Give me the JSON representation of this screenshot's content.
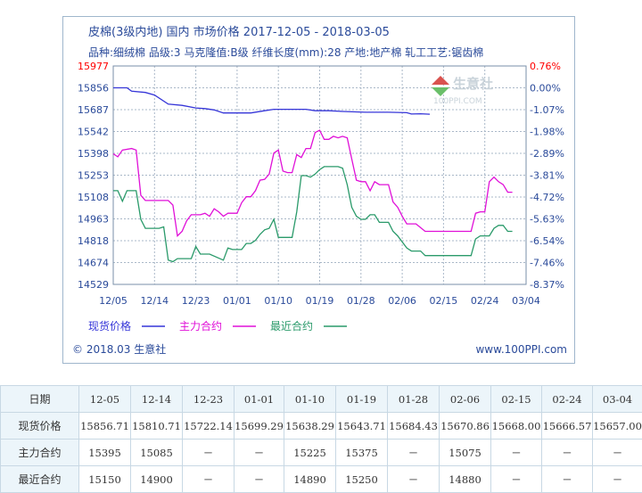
{
  "chart_data": {
    "type": "line",
    "title": "皮棉(3级内地) 国内 市场价格 2017-12-05 - 2018-03-05",
    "subtitle": "品种:细绒棉 品级:3 马克隆值:B级 纤维长度(mm):28 产地:地产棉 轧工工艺:锯齿棉",
    "xlabel": "",
    "ylabel": "",
    "x_ticks": [
      "12/05",
      "12/14",
      "12/23",
      "01/01",
      "01/10",
      "01/19",
      "01/28",
      "02/06",
      "02/15",
      "02/24",
      "03/04"
    ],
    "y_ticks": [
      "15977",
      "15856",
      "15687",
      "15542",
      "15398",
      "15253",
      "15108",
      "14963",
      "14818",
      "14674",
      "14529"
    ],
    "y_right_ticks": [
      "0.76%",
      "0.00%",
      "-1.07%",
      "-1.98%",
      "-2.89%",
      "-3.81%",
      "-4.72%",
      "-5.63%",
      "-6.54%",
      "-7.46%",
      "-8.37%"
    ],
    "ylim": [
      14529,
      15977
    ],
    "grid": true,
    "legend_position": "bottom-left",
    "series": [
      {
        "name": "现货价格",
        "color": "#3535d8",
        "points": [
          [
            0,
            15856
          ],
          [
            3,
            15856
          ],
          [
            4,
            15830
          ],
          [
            7,
            15820
          ],
          [
            9,
            15800
          ],
          [
            12,
            15730
          ],
          [
            15,
            15720
          ],
          [
            18,
            15700
          ],
          [
            20,
            15695
          ],
          [
            22,
            15685
          ],
          [
            24,
            15665
          ],
          [
            30,
            15665
          ],
          [
            33,
            15680
          ],
          [
            35,
            15690
          ],
          [
            39,
            15690
          ],
          [
            42,
            15690
          ],
          [
            44,
            15680
          ],
          [
            47,
            15680
          ],
          [
            50,
            15675
          ],
          [
            55,
            15670
          ],
          [
            60,
            15670
          ],
          [
            64,
            15667
          ],
          [
            65,
            15658
          ],
          [
            67,
            15660
          ],
          [
            69,
            15657
          ]
        ]
      },
      {
        "name": "主力合约",
        "color": "#e010d8",
        "points": [
          [
            0,
            15395
          ],
          [
            1,
            15375
          ],
          [
            2,
            15420
          ],
          [
            4,
            15430
          ],
          [
            5,
            15420
          ],
          [
            6,
            15120
          ],
          [
            7,
            15085
          ],
          [
            11,
            15085
          ],
          [
            12,
            15085
          ],
          [
            13,
            15055
          ],
          [
            14,
            14850
          ],
          [
            15,
            14880
          ],
          [
            16,
            14950
          ],
          [
            17,
            14990
          ],
          [
            19,
            14990
          ],
          [
            20,
            15000
          ],
          [
            21,
            14980
          ],
          [
            22,
            15030
          ],
          [
            23,
            15010
          ],
          [
            24,
            14980
          ],
          [
            25,
            15000
          ],
          [
            27,
            15000
          ],
          [
            28,
            15070
          ],
          [
            29,
            15110
          ],
          [
            30,
            15110
          ],
          [
            31,
            15150
          ],
          [
            32,
            15220
          ],
          [
            33,
            15225
          ],
          [
            34,
            15260
          ],
          [
            35,
            15400
          ],
          [
            36,
            15420
          ],
          [
            37,
            15280
          ],
          [
            38,
            15270
          ],
          [
            39,
            15270
          ],
          [
            40,
            15390
          ],
          [
            41,
            15370
          ],
          [
            42,
            15430
          ],
          [
            43,
            15430
          ],
          [
            44,
            15535
          ],
          [
            45,
            15550
          ],
          [
            46,
            15490
          ],
          [
            47,
            15490
          ],
          [
            48,
            15510
          ],
          [
            49,
            15500
          ],
          [
            50,
            15510
          ],
          [
            51,
            15500
          ],
          [
            52,
            15360
          ],
          [
            53,
            15220
          ],
          [
            54,
            15210
          ],
          [
            55,
            15210
          ],
          [
            56,
            15150
          ],
          [
            57,
            15210
          ],
          [
            58,
            15190
          ],
          [
            60,
            15190
          ],
          [
            61,
            15075
          ],
          [
            62,
            15040
          ],
          [
            63,
            14980
          ],
          [
            64,
            14930
          ],
          [
            66,
            14930
          ],
          [
            68,
            14880
          ],
          [
            69,
            14880
          ],
          [
            76,
            14880
          ],
          [
            78,
            14880
          ],
          [
            79,
            15000
          ],
          [
            80,
            15010
          ],
          [
            81,
            15010
          ],
          [
            82,
            15210
          ],
          [
            83,
            15240
          ],
          [
            84,
            15210
          ],
          [
            85,
            15190
          ],
          [
            86,
            15140
          ],
          [
            87,
            15140
          ]
        ]
      },
      {
        "name": "最近合约",
        "color": "#2a9a6a",
        "points": [
          [
            0,
            15150
          ],
          [
            1,
            15150
          ],
          [
            2,
            15080
          ],
          [
            3,
            15150
          ],
          [
            4,
            15150
          ],
          [
            5,
            15150
          ],
          [
            6,
            14960
          ],
          [
            7,
            14900
          ],
          [
            10,
            14900
          ],
          [
            11,
            14910
          ],
          [
            12,
            14690
          ],
          [
            13,
            14680
          ],
          [
            14,
            14700
          ],
          [
            15,
            14700
          ],
          [
            17,
            14700
          ],
          [
            18,
            14780
          ],
          [
            19,
            14730
          ],
          [
            21,
            14730
          ],
          [
            24,
            14690
          ],
          [
            25,
            14770
          ],
          [
            26,
            14760
          ],
          [
            28,
            14760
          ],
          [
            29,
            14800
          ],
          [
            30,
            14800
          ],
          [
            31,
            14820
          ],
          [
            32,
            14860
          ],
          [
            33,
            14890
          ],
          [
            34,
            14900
          ],
          [
            35,
            14960
          ],
          [
            36,
            14840
          ],
          [
            37,
            14840
          ],
          [
            39,
            14840
          ],
          [
            40,
            15010
          ],
          [
            41,
            15250
          ],
          [
            42,
            15250
          ],
          [
            43,
            15240
          ],
          [
            44,
            15260
          ],
          [
            45,
            15290
          ],
          [
            46,
            15310
          ],
          [
            47,
            15310
          ],
          [
            49,
            15310
          ],
          [
            50,
            15300
          ],
          [
            51,
            15190
          ],
          [
            52,
            15040
          ],
          [
            53,
            14980
          ],
          [
            54,
            14960
          ],
          [
            55,
            14960
          ],
          [
            56,
            14990
          ],
          [
            57,
            14990
          ],
          [
            58,
            14940
          ],
          [
            60,
            14940
          ],
          [
            61,
            14880
          ],
          [
            62,
            14850
          ],
          [
            64,
            14770
          ],
          [
            65,
            14750
          ],
          [
            67,
            14750
          ],
          [
            68,
            14720
          ],
          [
            69,
            14720
          ],
          [
            78,
            14720
          ],
          [
            79,
            14830
          ],
          [
            80,
            14850
          ],
          [
            81,
            14850
          ],
          [
            82,
            14850
          ],
          [
            83,
            14900
          ],
          [
            84,
            14920
          ],
          [
            85,
            14920
          ],
          [
            86,
            14880
          ],
          [
            87,
            14880
          ]
        ]
      }
    ]
  },
  "legend": {
    "items": [
      {
        "label": "现货价格",
        "color": "#3535d8"
      },
      {
        "label": "主力合约",
        "color": "#e010d8"
      },
      {
        "label": "最近合约",
        "color": "#2a9a6a"
      }
    ]
  },
  "footer": {
    "left": "© 2018.03 生意社",
    "right": "www.100PPI.com"
  },
  "watermark": {
    "brand": "生意社",
    "url": "100PPI.COM"
  },
  "table": {
    "header": [
      "日期",
      "12-05",
      "12-14",
      "12-23",
      "01-01",
      "01-10",
      "01-19",
      "01-28",
      "02-06",
      "02-15",
      "02-24",
      "03-04"
    ],
    "rows": [
      [
        "现货价格",
        "15856.71",
        "15810.71",
        "15722.14",
        "15699.29",
        "15638.29",
        "15643.71",
        "15684.43",
        "15670.86",
        "15668.00",
        "15666.57",
        "15657.00"
      ],
      [
        "主力合约",
        "15395",
        "15085",
        "－",
        "－",
        "15225",
        "15375",
        "－",
        "15075",
        "－",
        "－",
        "－"
      ],
      [
        "最近合约",
        "15150",
        "14900",
        "－",
        "－",
        "14890",
        "15250",
        "－",
        "14880",
        "－",
        "－",
        "－"
      ]
    ]
  }
}
